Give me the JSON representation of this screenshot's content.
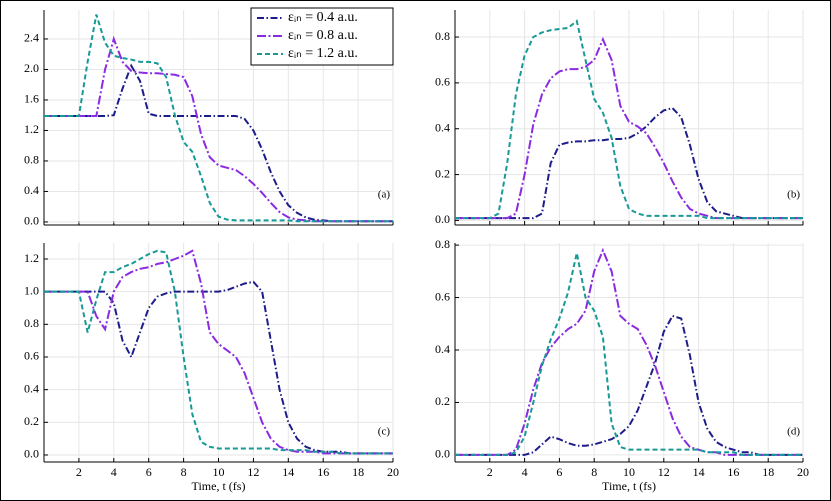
{
  "chart_data": [
    {
      "type": "line",
      "annotation": "(a)",
      "legend": "upper right",
      "grid": true,
      "show_xtick_labels": false,
      "xlim": [
        0,
        20
      ],
      "xticks": [
        2,
        4,
        6,
        8,
        10,
        12,
        14,
        16,
        18,
        20
      ],
      "ylim": [
        -0.04,
        2.78
      ],
      "yticks": [
        {
          "value": 0,
          "label": "0.0"
        },
        {
          "value": 0.4,
          "label": "0.4"
        },
        {
          "value": 0.8,
          "label": "0.8"
        },
        {
          "value": 1.2,
          "label": "1.2"
        },
        {
          "value": 1.6,
          "label": "1.6"
        },
        {
          "value": 2.0,
          "label": "2.0"
        },
        {
          "value": 2.4,
          "label": "2.4"
        }
      ],
      "x": [
        0,
        0.5,
        1,
        1.5,
        2,
        2.5,
        3,
        3.5,
        4,
        4.5,
        5,
        5.5,
        6,
        6.5,
        7,
        7.5,
        8,
        8.5,
        9,
        9.5,
        10,
        10.5,
        11,
        11.5,
        12,
        12.5,
        13,
        13.5,
        14,
        14.5,
        15,
        15.5,
        16,
        16.5,
        17,
        17.5,
        18,
        18.5,
        19,
        19.5,
        20
      ],
      "series": [
        {
          "name": "εᵢₙ = 0.4 a.u.",
          "color": "#1c1c8a",
          "dash": "7,2.5,1.5,2.5",
          "values": [
            1.39,
            1.39,
            1.39,
            1.39,
            1.39,
            1.39,
            1.39,
            1.39,
            1.4,
            1.75,
            2.05,
            1.85,
            1.42,
            1.39,
            1.39,
            1.39,
            1.39,
            1.39,
            1.39,
            1.39,
            1.39,
            1.39,
            1.39,
            1.35,
            1.2,
            0.95,
            0.65,
            0.4,
            0.22,
            0.12,
            0.06,
            0.03,
            0.02,
            0.01,
            0.01,
            0.01,
            0.01,
            0.01,
            0.01,
            0.01,
            0.01
          ]
        },
        {
          "name": "εᵢₙ = 0.8 a.u.",
          "color": "#8a2be2",
          "dash": "9,2.5,2,2.5",
          "values": [
            1.39,
            1.39,
            1.39,
            1.39,
            1.39,
            1.39,
            1.39,
            2.0,
            2.4,
            2.1,
            1.98,
            1.96,
            1.95,
            1.95,
            1.94,
            1.93,
            1.9,
            1.65,
            1.15,
            0.85,
            0.74,
            0.71,
            0.68,
            0.6,
            0.5,
            0.38,
            0.25,
            0.13,
            0.06,
            0.03,
            0.02,
            0.01,
            0.01,
            0.01,
            0.01,
            0.01,
            0.01,
            0.01,
            0.01,
            0.01,
            0.01
          ]
        },
        {
          "name": "εᵢₙ = 1.2 a.u.",
          "color": "#179a96",
          "dash": "5,3",
          "values": [
            1.39,
            1.39,
            1.39,
            1.39,
            1.39,
            2.1,
            2.72,
            2.35,
            2.18,
            2.15,
            2.13,
            2.1,
            2.1,
            2.08,
            1.9,
            1.4,
            1.05,
            0.92,
            0.6,
            0.25,
            0.07,
            0.03,
            0.02,
            0.02,
            0.02,
            0.02,
            0.02,
            0.02,
            0.02,
            0.01,
            0.01,
            0.01,
            0.01,
            0.01,
            0.01,
            0.01,
            0.01,
            0.01,
            0.01,
            0.01,
            0.01
          ]
        }
      ]
    },
    {
      "type": "line",
      "annotation": "(b)",
      "grid": true,
      "show_xtick_labels": false,
      "xlim": [
        0,
        20
      ],
      "xticks": [
        2,
        4,
        6,
        8,
        10,
        12,
        14,
        16,
        18,
        20
      ],
      "ylim": [
        -0.02,
        0.918
      ],
      "yticks": [
        {
          "value": 0,
          "label": "0.0"
        },
        0.2,
        0.4,
        0.6,
        0.8
      ],
      "x": [
        0,
        0.5,
        1,
        1.5,
        2,
        2.5,
        3,
        3.5,
        4,
        4.5,
        5,
        5.5,
        6,
        6.5,
        7,
        7.5,
        8,
        8.5,
        9,
        9.5,
        10,
        10.5,
        11,
        11.5,
        12,
        12.5,
        13,
        13.5,
        14,
        14.5,
        15,
        15.5,
        16,
        16.5,
        17,
        17.5,
        18,
        18.5,
        19,
        19.5,
        20
      ],
      "series": [
        {
          "color": "#1c1c8a",
          "dash": "7,2.5,1.5,2.5",
          "values": [
            0.01,
            0.01,
            0.01,
            0.01,
            0.01,
            0.01,
            0.01,
            0.01,
            0.01,
            0.01,
            0.03,
            0.25,
            0.33,
            0.34,
            0.345,
            0.345,
            0.35,
            0.35,
            0.355,
            0.355,
            0.36,
            0.38,
            0.41,
            0.45,
            0.48,
            0.49,
            0.45,
            0.33,
            0.18,
            0.08,
            0.04,
            0.03,
            0.02,
            0.01,
            0.01,
            0.01,
            0.01,
            0.01,
            0.01,
            0.01,
            0.01
          ]
        },
        {
          "color": "#8a2be2",
          "dash": "9,2.5,2,2.5",
          "values": [
            0.01,
            0.01,
            0.01,
            0.01,
            0.01,
            0.01,
            0.01,
            0.03,
            0.2,
            0.42,
            0.55,
            0.62,
            0.65,
            0.66,
            0.66,
            0.67,
            0.7,
            0.79,
            0.7,
            0.5,
            0.43,
            0.41,
            0.38,
            0.32,
            0.25,
            0.17,
            0.1,
            0.05,
            0.03,
            0.02,
            0.01,
            0.01,
            0.01,
            0.01,
            0.01,
            0.01,
            0.01,
            0.01,
            0.01,
            0.01,
            0.01
          ]
        },
        {
          "color": "#179a96",
          "dash": "5,3",
          "values": [
            0.01,
            0.01,
            0.01,
            0.01,
            0.01,
            0.03,
            0.25,
            0.55,
            0.72,
            0.8,
            0.82,
            0.83,
            0.835,
            0.84,
            0.87,
            0.7,
            0.53,
            0.47,
            0.36,
            0.15,
            0.05,
            0.03,
            0.02,
            0.02,
            0.02,
            0.02,
            0.02,
            0.02,
            0.02,
            0.01,
            0.01,
            0.01,
            0.01,
            0.01,
            0.01,
            0.01,
            0.01,
            0.01,
            0.01,
            0.01,
            0.01
          ]
        }
      ]
    },
    {
      "type": "line",
      "annotation": "(c)",
      "grid": true,
      "show_xtick_labels": true,
      "xlabel": "Time, t (fs)",
      "xlim": [
        0,
        20
      ],
      "xticks": [
        2,
        4,
        6,
        8,
        10,
        12,
        14,
        16,
        18,
        20
      ],
      "ylim": [
        -0.043,
        1.298
      ],
      "yticks": [
        {
          "value": 0,
          "label": "0.0"
        },
        0.2,
        0.4,
        0.6,
        0.8,
        {
          "value": 1,
          "label": "1.0"
        },
        1.2
      ],
      "x": [
        0,
        0.5,
        1,
        1.5,
        2,
        2.5,
        3,
        3.5,
        4,
        4.5,
        5,
        5.5,
        6,
        6.5,
        7,
        7.5,
        8,
        8.5,
        9,
        9.5,
        10,
        10.5,
        11,
        11.5,
        12,
        12.5,
        13,
        13.5,
        14,
        14.5,
        15,
        15.5,
        16,
        16.5,
        17,
        17.5,
        18,
        18.5,
        19,
        19.5,
        20
      ],
      "series": [
        {
          "color": "#1c1c8a",
          "dash": "7,2.5,1.5,2.5",
          "values": [
            1.0,
            1.0,
            1.0,
            1.0,
            1.0,
            1.0,
            1.0,
            1.0,
            0.93,
            0.7,
            0.6,
            0.75,
            0.9,
            0.97,
            0.99,
            1.0,
            1.0,
            1.0,
            1.0,
            1.0,
            1.0,
            1.01,
            1.03,
            1.05,
            1.06,
            1.0,
            0.7,
            0.4,
            0.2,
            0.1,
            0.05,
            0.03,
            0.02,
            0.02,
            0.02,
            0.01,
            0.01,
            0.01,
            0.01,
            0.01,
            0.01
          ]
        },
        {
          "color": "#8a2be2",
          "dash": "9,2.5,2,2.5",
          "values": [
            1.0,
            1.0,
            1.0,
            1.0,
            1.0,
            1.0,
            0.85,
            0.77,
            1.0,
            1.09,
            1.12,
            1.14,
            1.15,
            1.17,
            1.18,
            1.2,
            1.22,
            1.25,
            1.05,
            0.75,
            0.68,
            0.64,
            0.6,
            0.5,
            0.35,
            0.2,
            0.1,
            0.05,
            0.03,
            0.02,
            0.02,
            0.02,
            0.01,
            0.01,
            0.01,
            0.01,
            0.01,
            0.01,
            0.01,
            0.01,
            0.01
          ]
        },
        {
          "color": "#179a96",
          "dash": "5,3",
          "values": [
            1.0,
            1.0,
            1.0,
            1.0,
            1.0,
            0.75,
            0.95,
            1.12,
            1.12,
            1.15,
            1.17,
            1.2,
            1.23,
            1.25,
            1.24,
            1.0,
            0.6,
            0.25,
            0.08,
            0.05,
            0.04,
            0.04,
            0.04,
            0.04,
            0.04,
            0.04,
            0.04,
            0.03,
            0.03,
            0.03,
            0.03,
            0.02,
            0.02,
            0.02,
            0.01,
            0.01,
            0.01,
            0.01,
            0.01,
            0.01,
            0.01
          ]
        }
      ]
    },
    {
      "type": "line",
      "annotation": "(d)",
      "grid": true,
      "show_xtick_labels": true,
      "xlabel": "Time, t (fs)",
      "xlim": [
        0,
        20
      ],
      "xticks": [
        2,
        4,
        6,
        8,
        10,
        12,
        14,
        16,
        18,
        20
      ],
      "ylim": [
        -0.027,
        0.808
      ],
      "yticks": [
        {
          "value": 0,
          "label": "0.0"
        },
        0.2,
        0.4,
        0.6,
        0.8
      ],
      "x": [
        0,
        0.5,
        1,
        1.5,
        2,
        2.5,
        3,
        3.5,
        4,
        4.5,
        5,
        5.5,
        6,
        6.5,
        7,
        7.5,
        8,
        8.5,
        9,
        9.5,
        10,
        10.5,
        11,
        11.5,
        12,
        12.5,
        13,
        13.5,
        14,
        14.5,
        15,
        15.5,
        16,
        16.5,
        17,
        17.5,
        18,
        18.5,
        19,
        19.5,
        20
      ],
      "series": [
        {
          "color": "#1c1c8a",
          "dash": "7,2.5,1.5,2.5",
          "values": [
            0,
            0,
            0,
            0,
            0,
            0,
            0,
            0,
            0,
            0.01,
            0.04,
            0.07,
            0.06,
            0.045,
            0.035,
            0.035,
            0.04,
            0.05,
            0.06,
            0.08,
            0.11,
            0.17,
            0.26,
            0.35,
            0.47,
            0.53,
            0.52,
            0.38,
            0.2,
            0.1,
            0.05,
            0.03,
            0.02,
            0.01,
            0.01,
            0,
            0,
            0,
            0,
            0,
            0
          ]
        },
        {
          "color": "#8a2be2",
          "dash": "9,2.5,2,2.5",
          "values": [
            0,
            0,
            0,
            0,
            0,
            0,
            0,
            0.02,
            0.12,
            0.25,
            0.35,
            0.41,
            0.45,
            0.48,
            0.5,
            0.55,
            0.7,
            0.78,
            0.7,
            0.53,
            0.5,
            0.48,
            0.42,
            0.34,
            0.24,
            0.14,
            0.07,
            0.03,
            0.02,
            0.01,
            0.01,
            0,
            0,
            0,
            0,
            0,
            0,
            0,
            0,
            0,
            0
          ]
        },
        {
          "color": "#179a96",
          "dash": "5,3",
          "values": [
            0,
            0,
            0,
            0,
            0,
            0,
            0,
            0.01,
            0.07,
            0.2,
            0.34,
            0.44,
            0.52,
            0.62,
            0.77,
            0.6,
            0.55,
            0.45,
            0.12,
            0.03,
            0.02,
            0.02,
            0.02,
            0.02,
            0.02,
            0.02,
            0.02,
            0.02,
            0.02,
            0.01,
            0.01,
            0.01,
            0.01,
            0,
            0,
            0,
            0,
            0,
            0,
            0,
            0
          ]
        }
      ]
    }
  ]
}
